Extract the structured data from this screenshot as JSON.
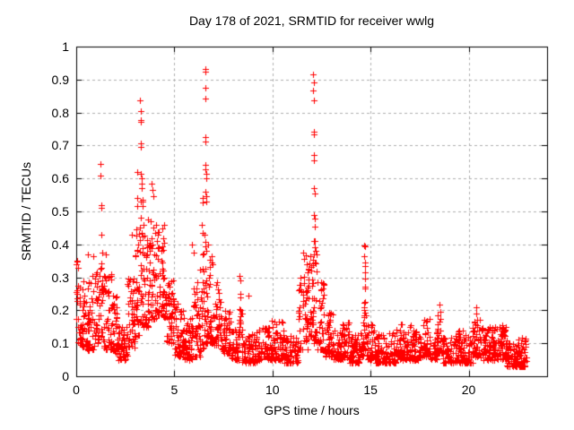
{
  "chart_data": {
    "type": "scatter",
    "title": "Day 178 of 2021, SRMTID for receiver wwlg",
    "xlabel": "GPS time / hours",
    "ylabel": "SRMTID / TECUs",
    "xlim": [
      0,
      24
    ],
    "ylim": [
      0,
      1
    ],
    "grid": true,
    "legend": "none",
    "marker": "plus",
    "marker_size": 7,
    "colors": {
      "background": "#ffffff",
      "marker": "#ff0000",
      "grid": "#b0b0b0",
      "axis": "#000000",
      "text": "#000000"
    },
    "x_ticks": [
      {
        "value": 0,
        "label": "0"
      },
      {
        "value": 5,
        "label": "5"
      },
      {
        "value": 10,
        "label": "10"
      },
      {
        "value": 15,
        "label": "15"
      },
      {
        "value": 20,
        "label": "20"
      }
    ],
    "y_ticks": [
      {
        "value": 0,
        "label": "0"
      },
      {
        "value": 0.1,
        "label": "0.1"
      },
      {
        "value": 0.2,
        "label": "0.2"
      },
      {
        "value": 0.3,
        "label": "0.3"
      },
      {
        "value": 0.4,
        "label": "0.4"
      },
      {
        "value": 0.5,
        "label": "0.5"
      },
      {
        "value": 0.6,
        "label": "0.6"
      },
      {
        "value": 0.7,
        "label": "0.7"
      },
      {
        "value": 0.8,
        "label": "0.8"
      },
      {
        "value": 0.9,
        "label": "0.9"
      },
      {
        "value": 1,
        "label": "1"
      }
    ],
    "series_name": "SRMTID",
    "envelope_bins": [
      [
        0.0,
        0.2,
        0.1,
        0.35,
        25
      ],
      [
        0.2,
        0.55,
        0.09,
        0.3,
        35
      ],
      [
        0.55,
        0.95,
        0.08,
        0.33,
        45
      ],
      [
        0.95,
        1.2,
        0.1,
        0.33,
        30
      ],
      [
        1.2,
        1.35,
        0.12,
        0.35,
        18
      ],
      [
        1.35,
        1.85,
        0.08,
        0.31,
        50
      ],
      [
        1.85,
        2.15,
        0.07,
        0.25,
        35
      ],
      [
        2.15,
        2.6,
        0.05,
        0.17,
        50
      ],
      [
        2.6,
        3.0,
        0.08,
        0.3,
        45
      ],
      [
        3.0,
        3.2,
        0.12,
        0.45,
        25
      ],
      [
        3.2,
        3.4,
        0.15,
        0.55,
        26
      ],
      [
        3.4,
        3.7,
        0.15,
        0.48,
        38
      ],
      [
        3.7,
        4.15,
        0.17,
        0.48,
        48
      ],
      [
        4.15,
        4.6,
        0.18,
        0.46,
        55
      ],
      [
        4.6,
        5.0,
        0.1,
        0.33,
        45
      ],
      [
        5.0,
        5.45,
        0.06,
        0.22,
        48
      ],
      [
        5.45,
        5.9,
        0.05,
        0.18,
        48
      ],
      [
        5.9,
        6.3,
        0.06,
        0.3,
        45
      ],
      [
        6.3,
        6.5,
        0.08,
        0.4,
        25
      ],
      [
        6.5,
        6.7,
        0.1,
        0.5,
        28
      ],
      [
        6.7,
        7.0,
        0.1,
        0.38,
        35
      ],
      [
        7.0,
        7.4,
        0.09,
        0.3,
        42
      ],
      [
        7.4,
        7.9,
        0.07,
        0.2,
        50
      ],
      [
        7.9,
        8.3,
        0.05,
        0.15,
        42
      ],
      [
        8.3,
        8.45,
        0.12,
        0.22,
        14
      ],
      [
        8.45,
        9.2,
        0.04,
        0.13,
        70
      ],
      [
        9.2,
        9.9,
        0.05,
        0.16,
        65
      ],
      [
        9.9,
        10.55,
        0.05,
        0.17,
        62
      ],
      [
        10.55,
        11.3,
        0.04,
        0.13,
        70
      ],
      [
        11.3,
        11.8,
        0.08,
        0.32,
        48
      ],
      [
        11.8,
        12.05,
        0.12,
        0.38,
        30
      ],
      [
        12.05,
        12.3,
        0.1,
        0.42,
        32
      ],
      [
        12.3,
        12.65,
        0.08,
        0.3,
        38
      ],
      [
        12.65,
        13.1,
        0.06,
        0.2,
        45
      ],
      [
        13.1,
        13.55,
        0.05,
        0.14,
        45
      ],
      [
        13.55,
        13.95,
        0.05,
        0.17,
        40
      ],
      [
        13.95,
        14.45,
        0.04,
        0.13,
        50
      ],
      [
        14.45,
        14.62,
        0.06,
        0.18,
        18
      ],
      [
        14.62,
        14.8,
        0.08,
        0.23,
        20
      ],
      [
        14.8,
        15.25,
        0.05,
        0.16,
        45
      ],
      [
        15.25,
        16.3,
        0.04,
        0.13,
        100
      ],
      [
        16.3,
        17.1,
        0.05,
        0.16,
        75
      ],
      [
        17.1,
        17.6,
        0.05,
        0.14,
        50
      ],
      [
        17.6,
        18.0,
        0.06,
        0.175,
        40
      ],
      [
        18.0,
        18.4,
        0.05,
        0.14,
        40
      ],
      [
        18.4,
        18.65,
        0.07,
        0.2,
        25
      ],
      [
        18.65,
        19.4,
        0.04,
        0.13,
        70
      ],
      [
        19.4,
        20.2,
        0.04,
        0.14,
        75
      ],
      [
        20.2,
        20.6,
        0.06,
        0.17,
        40
      ],
      [
        20.6,
        21.5,
        0.05,
        0.15,
        85
      ],
      [
        21.5,
        21.95,
        0.05,
        0.15,
        45
      ],
      [
        21.95,
        22.5,
        0.03,
        0.1,
        55
      ],
      [
        22.5,
        22.95,
        0.03,
        0.12,
        48
      ]
    ],
    "spike_points": [
      [
        0.05,
        0.35
      ],
      [
        0.08,
        0.33
      ],
      [
        0.6,
        0.37
      ],
      [
        0.85,
        0.365
      ],
      [
        1.52,
        0.37
      ],
      [
        1.25,
        0.645
      ],
      [
        1.25,
        0.61
      ],
      [
        1.26,
        0.52
      ],
      [
        1.27,
        0.51
      ],
      [
        1.3,
        0.43
      ],
      [
        1.32,
        0.375
      ],
      [
        2.82,
        0.43
      ],
      [
        3.09,
        0.62
      ],
      [
        3.12,
        0.54
      ],
      [
        3.13,
        0.515
      ],
      [
        3.26,
        0.836
      ],
      [
        3.27,
        0.804
      ],
      [
        3.275,
        0.778
      ],
      [
        3.28,
        0.772
      ],
      [
        3.29,
        0.706
      ],
      [
        3.3,
        0.697
      ],
      [
        3.31,
        0.613
      ],
      [
        3.32,
        0.6
      ],
      [
        3.33,
        0.585
      ],
      [
        3.35,
        0.57
      ],
      [
        3.36,
        0.536
      ],
      [
        3.86,
        0.585
      ],
      [
        3.88,
        0.565
      ],
      [
        3.91,
        0.545
      ],
      [
        5.9,
        0.4
      ],
      [
        5.98,
        0.375
      ],
      [
        6.4,
        0.46
      ],
      [
        6.43,
        0.54
      ],
      [
        6.45,
        0.527
      ],
      [
        6.44,
        0.435
      ],
      [
        6.56,
        0.932
      ],
      [
        6.575,
        0.925
      ],
      [
        6.57,
        0.874
      ],
      [
        6.58,
        0.843
      ],
      [
        6.59,
        0.725
      ],
      [
        6.6,
        0.713
      ],
      [
        6.58,
        0.64
      ],
      [
        6.6,
        0.627
      ],
      [
        6.61,
        0.615
      ],
      [
        6.62,
        0.6
      ],
      [
        6.6,
        0.56
      ],
      [
        6.62,
        0.545
      ],
      [
        6.63,
        0.53
      ],
      [
        6.74,
        0.4
      ],
      [
        8.33,
        0.305
      ],
      [
        8.35,
        0.29
      ],
      [
        8.36,
        0.25
      ],
      [
        8.37,
        0.24
      ],
      [
        8.38,
        0.2
      ],
      [
        8.39,
        0.19
      ],
      [
        8.79,
        0.245
      ],
      [
        11.58,
        0.375
      ],
      [
        11.62,
        0.355
      ],
      [
        11.7,
        0.368
      ],
      [
        11.74,
        0.34
      ],
      [
        12.08,
        0.917
      ],
      [
        12.1,
        0.89
      ],
      [
        12.09,
        0.868
      ],
      [
        12.11,
        0.836
      ],
      [
        12.1,
        0.742
      ],
      [
        12.12,
        0.735
      ],
      [
        12.11,
        0.672
      ],
      [
        12.13,
        0.654
      ],
      [
        12.12,
        0.572
      ],
      [
        12.14,
        0.554
      ],
      [
        12.13,
        0.49
      ],
      [
        12.15,
        0.477
      ],
      [
        12.14,
        0.455
      ],
      [
        12.16,
        0.409
      ],
      [
        12.17,
        0.39
      ],
      [
        14.68,
        0.398
      ],
      [
        14.7,
        0.394
      ],
      [
        14.69,
        0.365
      ],
      [
        14.7,
        0.345
      ],
      [
        14.71,
        0.335
      ],
      [
        14.7,
        0.315
      ],
      [
        14.72,
        0.295
      ],
      [
        14.71,
        0.272
      ],
      [
        14.73,
        0.265
      ],
      [
        14.72,
        0.225
      ],
      [
        18.5,
        0.165
      ],
      [
        18.52,
        0.217
      ],
      [
        18.54,
        0.195
      ],
      [
        18.55,
        0.175
      ],
      [
        20.38,
        0.21
      ],
      [
        20.4,
        0.19
      ],
      [
        20.42,
        0.17
      ],
      [
        20.44,
        0.155
      ],
      [
        21.72,
        0.155
      ],
      [
        21.75,
        0.145
      ]
    ]
  }
}
